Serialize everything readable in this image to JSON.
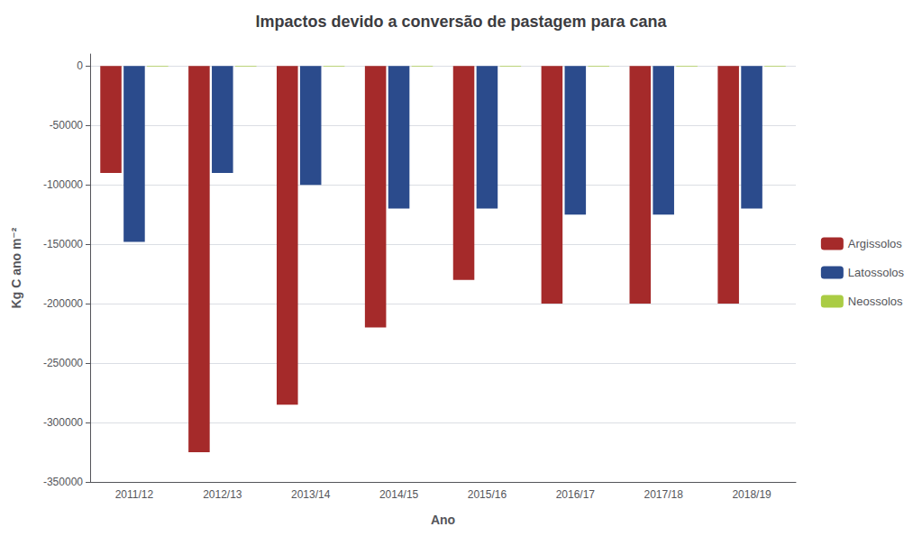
{
  "chart_data": {
    "type": "bar",
    "title": "Impactos devido a conversão de pastagem para cana",
    "xlabel": "Ano",
    "ylabel": "Kg C ano m⁻²",
    "categories": [
      "2011/12",
      "2012/13",
      "2013/14",
      "2014/15",
      "2015/16",
      "2016/17",
      "2017/18",
      "2018/19"
    ],
    "series": [
      {
        "name": "Argissolos",
        "color": "#A52A2A",
        "values": [
          -90000,
          -325000,
          -285000,
          -220000,
          -180000,
          -200000,
          -200000,
          -200000
        ]
      },
      {
        "name": "Latossolos",
        "color": "#2B4B8C",
        "values": [
          -148000,
          -90000,
          -100000,
          -120000,
          -120000,
          -125000,
          -125000,
          -120000
        ]
      },
      {
        "name": "Neossolos",
        "color": "#AACC44",
        "values": [
          -500,
          -500,
          -500,
          -500,
          -500,
          -500,
          -500,
          -500
        ]
      }
    ],
    "ylim": [
      -350000,
      10000
    ],
    "yticks": [
      0,
      -50000,
      -100000,
      -150000,
      -200000,
      -250000,
      -300000,
      -350000
    ],
    "grid": true,
    "legend": "right"
  }
}
